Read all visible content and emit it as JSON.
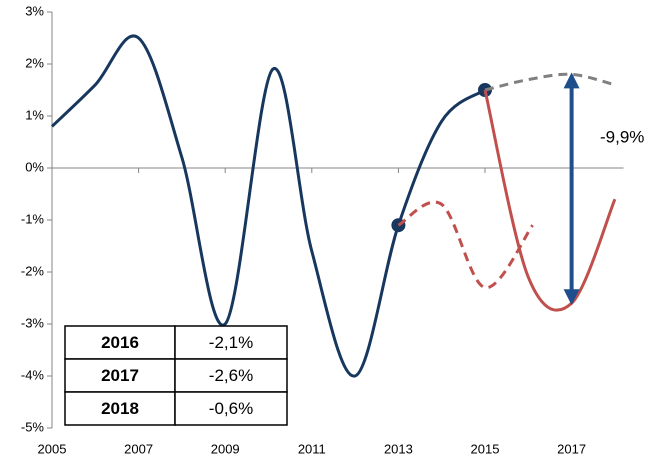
{
  "chart_data": {
    "type": "line",
    "xlim": [
      2005,
      2018.2
    ],
    "xticks": [
      2005,
      2007,
      2009,
      2011,
      2013,
      2015,
      2017
    ],
    "ylim": [
      -5,
      3
    ],
    "yticks": [
      {
        "value": -5,
        "label": "-5%"
      },
      {
        "value": -4,
        "label": "-4%"
      },
      {
        "value": -3,
        "label": "-3%"
      },
      {
        "value": -2,
        "label": "-2%"
      },
      {
        "value": -1,
        "label": "-1%"
      },
      {
        "value": 0,
        "label": "0%"
      },
      {
        "value": 1,
        "label": "1%"
      },
      {
        "value": 2,
        "label": "2%"
      },
      {
        "value": 3,
        "label": "3%"
      }
    ],
    "series": [
      {
        "color": "#17375e",
        "dashed": false,
        "x": [
          2005,
          2006,
          2007,
          2008,
          2009,
          2010.1,
          2011,
          2012,
          2013,
          2014,
          2015
        ],
        "values": [
          0.8,
          1.6,
          2.5,
          0.2,
          -3.0,
          1.9,
          -1.6,
          -4.0,
          -1.1,
          0.9,
          1.5
        ],
        "markers": [
          8,
          10
        ]
      },
      {
        "color": "#808080",
        "dashed": true,
        "x": [
          2015,
          2016,
          2017,
          2018
        ],
        "values": [
          1.5,
          1.7,
          1.8,
          1.6
        ]
      },
      {
        "color": "#c0504d",
        "dashed": false,
        "x": [
          2015,
          2016,
          2017,
          2018
        ],
        "values": [
          1.5,
          -2.1,
          -2.6,
          -0.6
        ]
      },
      {
        "color": "#c0504d",
        "dashed": true,
        "x": [
          2013,
          2014,
          2015,
          2016.1
        ],
        "values": [
          -1.1,
          -0.7,
          -2.3,
          -1.1
        ]
      }
    ],
    "annotation": "-9,9%",
    "table": {
      "rows": [
        [
          "2016",
          "-2,1%"
        ],
        [
          "2017",
          "-2,6%"
        ],
        [
          "2018",
          "-0,6%"
        ]
      ]
    }
  }
}
